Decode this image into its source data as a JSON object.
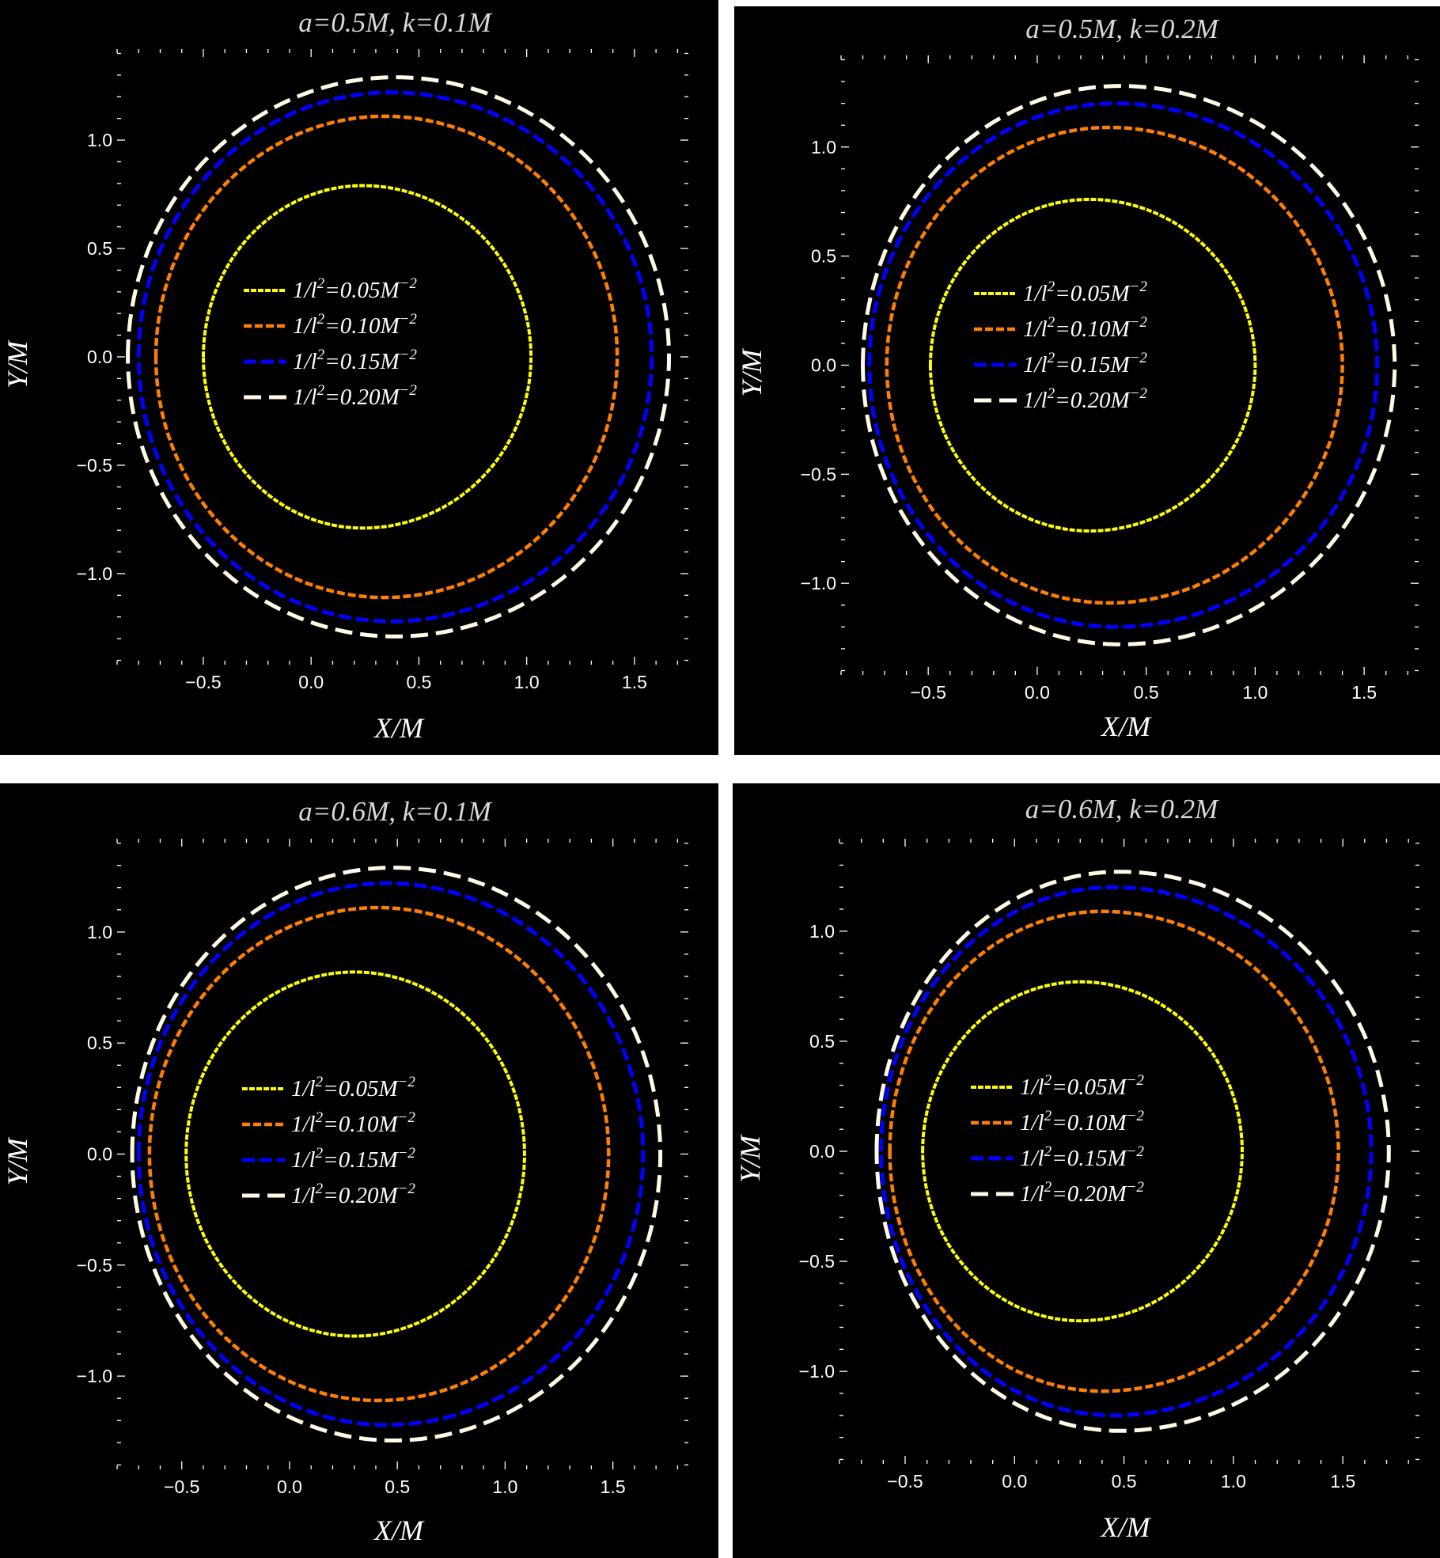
{
  "colors": {
    "background": "#000000",
    "separator": "#ffffff",
    "axis": "#ffffff",
    "title": "#d9d9d9",
    "series": [
      "#ffff00",
      "#ff7f00",
      "#0000ff",
      "#fffbe6"
    ]
  },
  "chart_data": [
    {
      "type": "line",
      "title": "a=0.5M, k=0.1M",
      "xlabel": "X/M",
      "ylabel": "Y/M",
      "xlim": [
        -0.9,
        1.75
      ],
      "ylim": [
        -1.42,
        1.42
      ],
      "xticks": [
        -0.5,
        0.0,
        0.5,
        1.0,
        1.5
      ],
      "xtick_labels": [
        "−0.5",
        "0.0",
        "0.5",
        "1.0",
        "1.5"
      ],
      "yticks": [
        -1.0,
        -0.5,
        0.0,
        0.5,
        1.0
      ],
      "ytick_labels": [
        "−1.0",
        "−0.5",
        "0.0",
        "0.5",
        "1.0"
      ],
      "grid": false,
      "legend_position": "center",
      "series": [
        {
          "name_prefix": "1/l",
          "name_sup": "2",
          "name_mid": "=0.05M",
          "name_sup2": "−2",
          "xmin": -0.5,
          "xmax": 1.02,
          "ymax": 0.79,
          "cx": 0.24
        },
        {
          "name_prefix": "1/l",
          "name_sup": "2",
          "name_mid": "=0.10M",
          "name_sup2": "−2",
          "xmin": -0.72,
          "xmax": 1.42,
          "ymax": 1.11,
          "cx": 0.34
        },
        {
          "name_prefix": "1/l",
          "name_sup": "2",
          "name_mid": "=0.15M",
          "name_sup2": "−2",
          "xmin": -0.8,
          "xmax": 1.58,
          "ymax": 1.22,
          "cx": 0.37
        },
        {
          "name_prefix": "1/l",
          "name_sup": "2",
          "name_mid": "=0.20M",
          "name_sup2": "−2",
          "xmin": -0.85,
          "xmax": 1.66,
          "ymax": 1.29,
          "cx": 0.39
        }
      ]
    },
    {
      "type": "line",
      "title": "a=0.5M, k=0.2M",
      "xlabel": "X/M",
      "ylabel": "Y/M",
      "xlim": [
        -0.9,
        1.75
      ],
      "ylim": [
        -1.42,
        1.42
      ],
      "xticks": [
        -0.5,
        0.0,
        0.5,
        1.0,
        1.5
      ],
      "xtick_labels": [
        "−0.5",
        "0.0",
        "0.5",
        "1.0",
        "1.5"
      ],
      "yticks": [
        -1.0,
        -0.5,
        0.0,
        0.5,
        1.0
      ],
      "ytick_labels": [
        "−1.0",
        "−0.5",
        "0.0",
        "0.5",
        "1.0"
      ],
      "grid": false,
      "legend_position": "center",
      "series": [
        {
          "name_prefix": "1/l",
          "name_sup": "2",
          "name_mid": "=0.05M",
          "name_sup2": "−2",
          "xmin": -0.49,
          "xmax": 1.0,
          "ymax": 0.76,
          "cx": 0.24
        },
        {
          "name_prefix": "1/l",
          "name_sup": "2",
          "name_mid": "=0.10M",
          "name_sup2": "−2",
          "xmin": -0.69,
          "xmax": 1.4,
          "ymax": 1.09,
          "cx": 0.33
        },
        {
          "name_prefix": "1/l",
          "name_sup": "2",
          "name_mid": "=0.15M",
          "name_sup2": "−2",
          "xmin": -0.77,
          "xmax": 1.56,
          "ymax": 1.2,
          "cx": 0.36
        },
        {
          "name_prefix": "1/l",
          "name_sup": "2",
          "name_mid": "=0.20M",
          "name_sup2": "−2",
          "xmin": -0.8,
          "xmax": 1.64,
          "ymax": 1.28,
          "cx": 0.38
        }
      ]
    },
    {
      "type": "line",
      "title": "a=0.6M, k=0.1M",
      "xlabel": "X/M",
      "ylabel": "Y/M",
      "xlim": [
        -0.8,
        1.85
      ],
      "ylim": [
        -1.42,
        1.42
      ],
      "xticks": [
        -0.5,
        0.0,
        0.5,
        1.0,
        1.5
      ],
      "xtick_labels": [
        "−0.5",
        "0.0",
        "0.5",
        "1.0",
        "1.5"
      ],
      "yticks": [
        -1.0,
        -0.5,
        0.0,
        0.5,
        1.0
      ],
      "ytick_labels": [
        "−1.0",
        "−0.5",
        "0.0",
        "0.5",
        "1.0"
      ],
      "grid": false,
      "legend_position": "center",
      "series": [
        {
          "name_prefix": "1/l",
          "name_sup": "2",
          "name_mid": "=0.05M",
          "name_sup2": "−2",
          "xmin": -0.48,
          "xmax": 1.09,
          "ymax": 0.82,
          "cx": 0.3
        },
        {
          "name_prefix": "1/l",
          "name_sup": "2",
          "name_mid": "=0.10M",
          "name_sup2": "−2",
          "xmin": -0.65,
          "xmax": 1.48,
          "ymax": 1.11,
          "cx": 0.41
        },
        {
          "name_prefix": "1/l",
          "name_sup": "2",
          "name_mid": "=0.15M",
          "name_sup2": "−2",
          "xmin": -0.7,
          "xmax": 1.64,
          "ymax": 1.22,
          "cx": 0.45
        },
        {
          "name_prefix": "1/l",
          "name_sup": "2",
          "name_mid": "=0.20M",
          "name_sup2": "−2",
          "xmin": -0.73,
          "xmax": 1.72,
          "ymax": 1.29,
          "cx": 0.48
        }
      ]
    },
    {
      "type": "line",
      "title": "a=0.6M, k=0.2M",
      "xlabel": "X/M",
      "ylabel": "Y/M",
      "xlim": [
        -0.8,
        1.85
      ],
      "ylim": [
        -1.42,
        1.42
      ],
      "xticks": [
        -0.5,
        0.0,
        0.5,
        1.0,
        1.5
      ],
      "xtick_labels": [
        "−0.5",
        "0.0",
        "0.5",
        "1.0",
        "1.5"
      ],
      "yticks": [
        -1.0,
        -0.5,
        0.0,
        0.5,
        1.0
      ],
      "ytick_labels": [
        "−1.0",
        "−0.5",
        "0.0",
        "0.5",
        "1.0"
      ],
      "grid": false,
      "legend_position": "center",
      "series": [
        {
          "name_prefix": "1/l",
          "name_sup": "2",
          "name_mid": "=0.05M",
          "name_sup2": "−2",
          "xmin": -0.42,
          "xmax": 1.04,
          "ymax": 0.77,
          "cx": 0.3
        },
        {
          "name_prefix": "1/l",
          "name_sup": "2",
          "name_mid": "=0.10M",
          "name_sup2": "−2",
          "xmin": -0.57,
          "xmax": 1.48,
          "ymax": 1.09,
          "cx": 0.4
        },
        {
          "name_prefix": "1/l",
          "name_sup": "2",
          "name_mid": "=0.15M",
          "name_sup2": "−2",
          "xmin": -0.61,
          "xmax": 1.63,
          "ymax": 1.2,
          "cx": 0.45
        },
        {
          "name_prefix": "1/l",
          "name_sup": "2",
          "name_mid": "=0.20M",
          "name_sup2": "−2",
          "xmin": -0.63,
          "xmax": 1.71,
          "ymax": 1.27,
          "cx": 0.48
        }
      ]
    }
  ]
}
